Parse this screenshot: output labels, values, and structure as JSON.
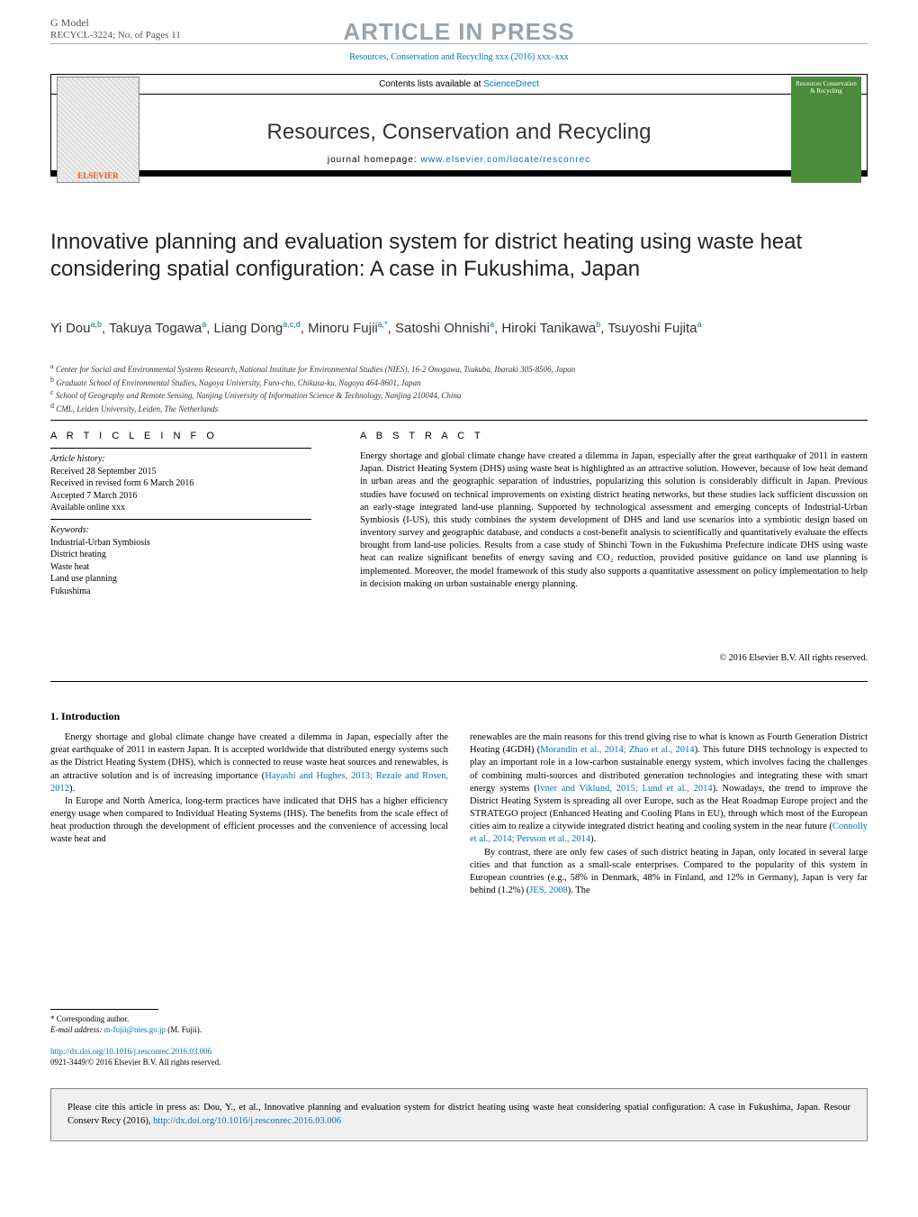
{
  "header": {
    "gmodel": "G Model",
    "recycl": "RECYCL-3224;   No. of Pages 11",
    "article_in_press": "ARTICLE IN PRESS",
    "citation": "Resources, Conservation and Recycling xxx (2016) xxx–xxx"
  },
  "journal_box": {
    "contents_label": "Contents lists available at ",
    "sciencedirect": "ScienceDirect",
    "journal_name": "Resources, Conservation and Recycling",
    "homepage_label": "journal homepage: ",
    "homepage_url": "www.elsevier.com/locate/resconrec",
    "elsevier": "ELSEVIER",
    "cover_text": "Resources Conservation & Recycling"
  },
  "title": "Innovative planning and evaluation system for district heating using waste heat considering spatial configuration: A case in Fukushima, Japan",
  "authors_html": "Yi Dou<sup>a,b</sup>, Takuya Togawa<sup>a</sup>, Liang Dong<sup>a,c,d</sup>, Minoru Fujii<sup>a,*</sup>, Satoshi Ohnishi<sup>a</sup>, Hiroki Tanikawa<sup>b</sup>, Tsuyoshi Fujita<sup>a</sup>",
  "affiliations": {
    "a": "Center for Social and Environmental Systems Research, National Institute for Environmental Studies (NIES), 16-2 Onogawa, Tsukuba, Ibaraki 305-8506, Japan",
    "b": "Graduate School of Environmental Studies, Nagoya University, Furo-cho, Chikusa-ku, Nagoya 464-8601, Japan",
    "c": "School of Geography and Remote Sensing, Nanjing University of Information Science & Technology, Nanjing 210044, China",
    "d": "CML, Leiden University, Leiden, The Netherlands"
  },
  "article_info": {
    "label": "A R T I C L E   I N F O",
    "history_label": "Article history:",
    "received": "Received 28 September 2015",
    "revised": "Received in revised form 6 March 2016",
    "accepted": "Accepted 7 March 2016",
    "online": "Available online xxx",
    "keywords_label": "Keywords:",
    "keywords": [
      "Industrial-Urban Symbiosis",
      "District heating",
      "Waste heat",
      "Land use planning",
      "Fukushima"
    ]
  },
  "abstract": {
    "label": "A B S T R A C T",
    "text": "Energy shortage and global climate change have created a dilemma in Japan, especially after the great earthquake of 2011 in eastern Japan. District Heating System (DHS) using waste heat is highlighted as an attractive solution. However, because of low heat demand in urban areas and the geographic separation of industries, popularizing this solution is considerably difficult in Japan. Previous studies have focused on technical improvements on existing district heating networks, but these studies lack sufficient discussion on an early-stage integrated land-use planning. Supported by technological assessment and emerging concepts of Industrial-Urban Symbiosis (I-US), this study combines the system development of DHS and land use scenarios into a symbiotic design based on inventory survey and geographic database, and conducts a cost-benefit analysis to scientifically and quantitatively evaluate the effects brought from land-use policies. Results from a case study of Shinchi Town in the Fukushima Prefecture indicate DHS using waste heat can realize significant benefits of energy saving and CO₂ reduction, provided positive guidance on land use planning is implemented. Moreover, the model framework of this study also supports a quantitative assessment on policy implementation to help in decision making on urban sustainable energy planning.",
    "copyright": "© 2016 Elsevier B.V. All rights reserved."
  },
  "intro": {
    "heading": "1.  Introduction",
    "col1_p1_a": "Energy shortage and global climate change have created a dilemma in Japan, especially after the great earthquake of 2011 in eastern Japan. It is accepted worldwide that distributed energy systems such as the District Heating System (DHS), which is connected to reuse waste heat sources and renewables, is an attractive solution and is of increasing importance (",
    "col1_p1_ref1": "Hayashi and Hughes, 2013; Rezaie and Rosen, 2012",
    "col1_p1_b": ").",
    "col1_p2": "In Europe and North America, long-term practices have indicated that DHS has a higher efficiency energy usage when compared to Individual Heating Systems (IHS). The benefits from the scale effect of heat production through the development of efficient processes and the convenience of accessing local waste heat and",
    "col2_p1_a": "renewables are the main reasons for this trend giving rise to what is known as Fourth Generation District Heating (4GDH) (",
    "col2_p1_ref1": "Morandin et al., 2014; Zhao et al., 2014",
    "col2_p1_b": "). This future DHS technology is expected to play an important role in a low-carbon sustainable energy system, which involves facing the challenges of combining multi-sources and distributed generation technologies and integrating these with smart energy systems (",
    "col2_p1_ref2": "Ivner and Viklund, 2015; Lund et al., 2014",
    "col2_p1_c": "). Nowadays, the trend to improve the District Heating System is spreading all over Europe, such as the Heat Roadmap Europe project and the STRATEGO project (Enhanced Heating and Cooling Plans in EU), through which most of the European cities aim to realize a citywide integrated district heating and cooling system in the near future (",
    "col2_p1_ref3": "Connolly et al., 2014; Persson et al., 2014",
    "col2_p1_d": ").",
    "col2_p2_a": "By contrast, there are only few cases of such district heating in Japan, only located in several large cities and that function as a small-scale enterprises. Compared to the popularity of this system in European countries (e.g., 58% in Denmark, 48% in Finland, and 12% in Germany), Japan is very far behind (1.2%) (",
    "col2_p2_ref1": "JES, 2008",
    "col2_p2_b": "). The"
  },
  "footnote": {
    "corr": "* Corresponding author.",
    "email_label": "E-mail address: ",
    "email": "m-fujii@nies.go.jp",
    "email_tail": " (M. Fujii)."
  },
  "doi": {
    "url": "http://dx.doi.org/10.1016/j.resconrec.2016.03.006",
    "issn": "0921-3449/© 2016 Elsevier B.V. All rights reserved."
  },
  "cite_box": {
    "text_a": "Please cite this article in press as: Dou, Y., et al., Innovative planning and evaluation system for district heating using waste heat considering spatial configuration: A case in Fukushima, Japan. Resour Conserv Recy (2016), ",
    "link": "http://dx.doi.org/10.1016/j.resconrec.2016.03.006"
  },
  "colors": {
    "link": "#0072bc",
    "gray_header": "#9aa3ab",
    "cover_bg": "#4a8c3a"
  }
}
